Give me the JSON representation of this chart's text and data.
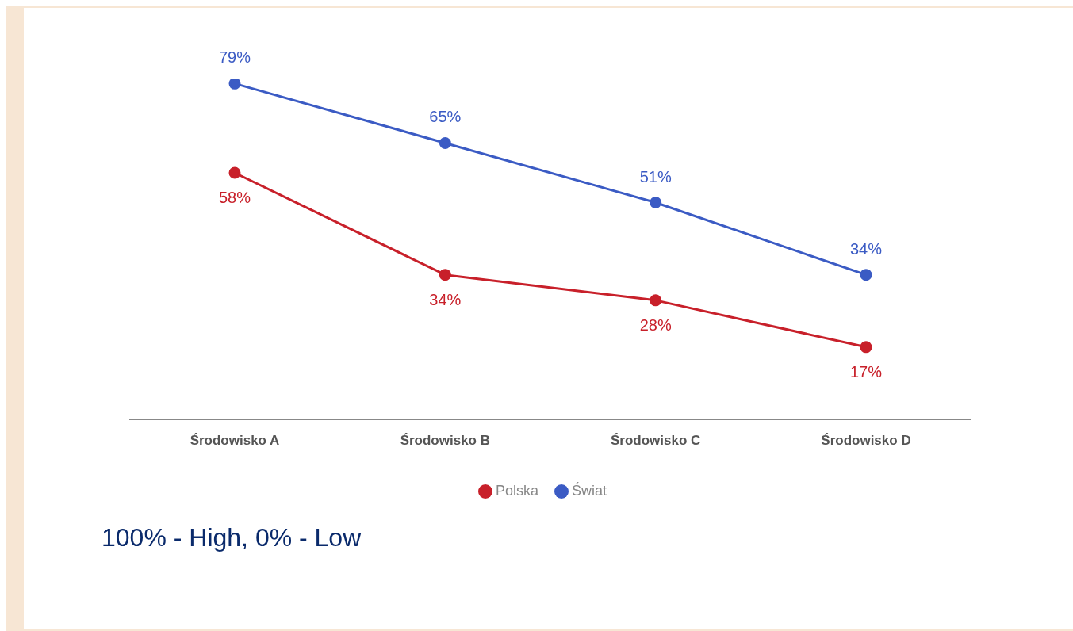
{
  "chart_data": {
    "type": "line",
    "categories": [
      "Środowisko A",
      "Środowisko B",
      "Środowisko C",
      "Środowisko D"
    ],
    "series": [
      {
        "name": "Polska",
        "color": "#c8202a",
        "values": [
          58,
          34,
          28,
          17
        ],
        "value_labels": [
          "58%",
          "34%",
          "28%",
          "17%"
        ]
      },
      {
        "name": "Świat",
        "color": "#3b5bc4",
        "values": [
          79,
          65,
          51,
          34
        ],
        "value_labels": [
          "79%",
          "65%",
          "51%",
          "34%"
        ]
      }
    ],
    "tick_labels": "x",
    "legend": "bottom",
    "marker": "circle",
    "line_style": "solid",
    "annotations": [
      "100% - High, 0% - Low"
    ]
  }
}
